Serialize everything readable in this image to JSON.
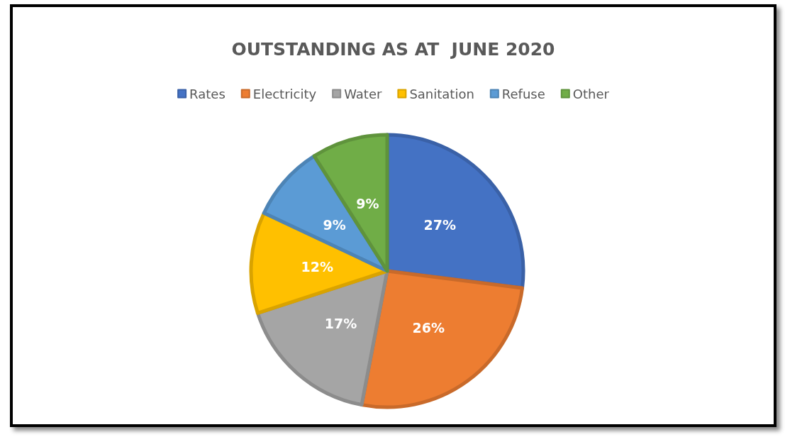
{
  "chart_data": {
    "type": "pie",
    "title": "OUTSTANDING AS AT  JUNE 2020",
    "categories": [
      "Rates",
      "Electricity",
      "Water",
      "Sanitation",
      "Refuse",
      "Other"
    ],
    "values": [
      27,
      26,
      17,
      12,
      9,
      9
    ],
    "colors": [
      "#4472c4",
      "#ed7d31",
      "#a5a5a5",
      "#ffc000",
      "#5b9bd5",
      "#70ad47"
    ],
    "value_labels": [
      "27%",
      "26%",
      "17%",
      "12%",
      "9%",
      "9%"
    ],
    "legend": "top"
  }
}
